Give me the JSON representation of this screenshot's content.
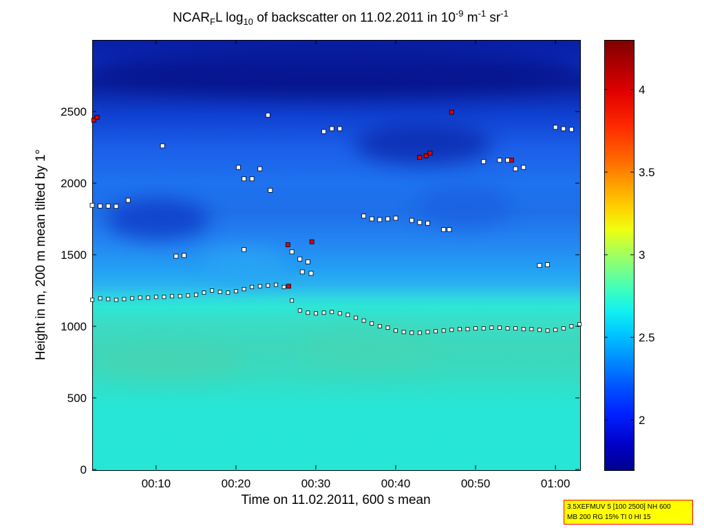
{
  "chart_data": {
    "type": "heatmap",
    "title": {
      "part1": "NCAR",
      "sub1": "F",
      "part2": "L log",
      "sub2": "10",
      "part3": " of backscatter on 11.02.2011 in 10",
      "sup1": "-9",
      "part4": " m",
      "sup2": "-1",
      "part5": " sr",
      "sup3": "-1"
    },
    "xlabel": "Time on 11.02.2011, 600 s mean",
    "ylabel": "Height in m, 200 m mean tilted by 1°",
    "x_tick_labels": [
      "00:10",
      "00:20",
      "00:30",
      "00:40",
      "00:50",
      "01:00"
    ],
    "x_tick_minutes": [
      10,
      20,
      30,
      40,
      50,
      60
    ],
    "xlim_minutes": [
      2,
      63
    ],
    "y_ticks": [
      0,
      500,
      1000,
      1500,
      2000,
      2500
    ],
    "ylim": [
      0,
      3000
    ],
    "colorbar": {
      "ticks": [
        2,
        2.5,
        3,
        3.5,
        4
      ],
      "tick_labels": [
        "2",
        "2.5",
        "3",
        "3.5",
        "4"
      ],
      "range": [
        1.7,
        4.3
      ],
      "colormap": "jet"
    },
    "grid": false,
    "boundary_layer_markers": {
      "minute": [
        2,
        3,
        4,
        5,
        6,
        7,
        8,
        9,
        10,
        11,
        12,
        13,
        14,
        15,
        16,
        17,
        18,
        19,
        20,
        21,
        22,
        23,
        24,
        25,
        26,
        27,
        28,
        29,
        30,
        31,
        32,
        33,
        34,
        35,
        36,
        37,
        38,
        39,
        40,
        41,
        42,
        43,
        44,
        45,
        46,
        47,
        48,
        49,
        50,
        51,
        52,
        53,
        54,
        55,
        56,
        57,
        58,
        59,
        60,
        61,
        62,
        63
      ],
      "height_m": [
        1185,
        1195,
        1190,
        1185,
        1190,
        1195,
        1200,
        1200,
        1205,
        1205,
        1210,
        1210,
        1215,
        1220,
        1235,
        1250,
        1240,
        1235,
        1245,
        1260,
        1275,
        1280,
        1285,
        1290,
        1275,
        1180,
        1110,
        1095,
        1090,
        1095,
        1100,
        1090,
        1080,
        1060,
        1040,
        1020,
        1000,
        990,
        970,
        960,
        955,
        955,
        960,
        965,
        970,
        975,
        980,
        980,
        985,
        985,
        990,
        990,
        985,
        985,
        980,
        980,
        975,
        970,
        975,
        985,
        1000,
        1015
      ]
    },
    "upper_layer_markers": [
      {
        "minute": 2.2,
        "height_m": 2440,
        "level": "high"
      },
      {
        "minute": 2.6,
        "height_m": 2460,
        "level": "high"
      },
      {
        "minute": 2,
        "height_m": 1845,
        "level": "low"
      },
      {
        "minute": 3,
        "height_m": 1840,
        "level": "low"
      },
      {
        "minute": 4,
        "height_m": 1840,
        "level": "low"
      },
      {
        "minute": 5,
        "height_m": 1838,
        "level": "low"
      },
      {
        "minute": 6.5,
        "height_m": 1880,
        "level": "low"
      },
      {
        "minute": 10.8,
        "height_m": 2260,
        "level": "low"
      },
      {
        "minute": 12.5,
        "height_m": 1490,
        "level": "low"
      },
      {
        "minute": 13.5,
        "height_m": 1495,
        "level": "low"
      },
      {
        "minute": 20.3,
        "height_m": 2110,
        "level": "low"
      },
      {
        "minute": 21,
        "height_m": 2030,
        "level": "low"
      },
      {
        "minute": 22,
        "height_m": 2030,
        "level": "low"
      },
      {
        "minute": 23,
        "height_m": 2100,
        "level": "low"
      },
      {
        "minute": 21,
        "height_m": 1535,
        "level": "low"
      },
      {
        "minute": 24,
        "height_m": 2475,
        "level": "low"
      },
      {
        "minute": 24.3,
        "height_m": 1950,
        "level": "low"
      },
      {
        "minute": 26.5,
        "height_m": 1570,
        "level": "high"
      },
      {
        "minute": 27,
        "height_m": 1520,
        "level": "low"
      },
      {
        "minute": 28,
        "height_m": 1470,
        "level": "low"
      },
      {
        "minute": 28.3,
        "height_m": 1380,
        "level": "low"
      },
      {
        "minute": 29,
        "height_m": 1450,
        "level": "low"
      },
      {
        "minute": 29.4,
        "height_m": 1370,
        "level": "low"
      },
      {
        "minute": 29.5,
        "height_m": 1590,
        "level": "high"
      },
      {
        "minute": 26.6,
        "height_m": 1280,
        "level": "high"
      },
      {
        "minute": 31,
        "height_m": 2360,
        "level": "low"
      },
      {
        "minute": 32,
        "height_m": 2380,
        "level": "low"
      },
      {
        "minute": 33,
        "height_m": 2380,
        "level": "low"
      },
      {
        "minute": 36,
        "height_m": 1770,
        "level": "low"
      },
      {
        "minute": 37,
        "height_m": 1750,
        "level": "low"
      },
      {
        "minute": 38,
        "height_m": 1745,
        "level": "low"
      },
      {
        "minute": 39,
        "height_m": 1750,
        "level": "low"
      },
      {
        "minute": 40,
        "height_m": 1755,
        "level": "low"
      },
      {
        "minute": 42,
        "height_m": 1740,
        "level": "low"
      },
      {
        "minute": 43,
        "height_m": 1725,
        "level": "low"
      },
      {
        "minute": 44,
        "height_m": 1720,
        "level": "low"
      },
      {
        "minute": 43,
        "height_m": 2180,
        "level": "high"
      },
      {
        "minute": 43.8,
        "height_m": 2190,
        "level": "high"
      },
      {
        "minute": 44.3,
        "height_m": 2210,
        "level": "high"
      },
      {
        "minute": 46,
        "height_m": 1675,
        "level": "low"
      },
      {
        "minute": 46.7,
        "height_m": 1675,
        "level": "low"
      },
      {
        "minute": 47,
        "height_m": 2495,
        "level": "high"
      },
      {
        "minute": 51,
        "height_m": 2150,
        "level": "low"
      },
      {
        "minute": 53,
        "height_m": 2160,
        "level": "low"
      },
      {
        "minute": 54,
        "height_m": 2160,
        "level": "low"
      },
      {
        "minute": 54.5,
        "height_m": 2160,
        "level": "high"
      },
      {
        "minute": 55,
        "height_m": 2100,
        "level": "low"
      },
      {
        "minute": 56,
        "height_m": 2110,
        "level": "low"
      },
      {
        "minute": 58,
        "height_m": 1425,
        "level": "low"
      },
      {
        "minute": 59,
        "height_m": 1430,
        "level": "low"
      },
      {
        "minute": 60,
        "height_m": 2390,
        "level": "low"
      },
      {
        "minute": 61,
        "height_m": 2380,
        "level": "low"
      },
      {
        "minute": 62,
        "height_m": 2375,
        "level": "low"
      }
    ]
  },
  "note": {
    "line1": "3.5XEFMUV 5 [100 2500] NH 600",
    "line2": "MB 200 RG 15% TI 0 HI 15"
  },
  "colors": {
    "marker_low": "#ffffff",
    "marker_high": "#e00000",
    "note_background": "#ffff00",
    "note_border": "#ff0000"
  }
}
